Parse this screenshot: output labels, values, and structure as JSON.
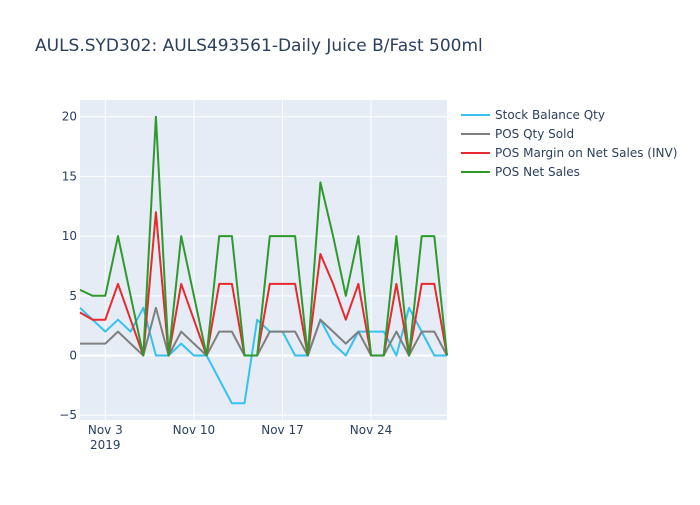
{
  "title": "AULS.SYD302:  AULS493561-Daily Juice B/Fast 500ml",
  "colors": {
    "plot_bg": "#e5ecf6",
    "grid": "#ffffff",
    "text": "#2a3f5f"
  },
  "chart_data": {
    "type": "line",
    "title": "AULS.SYD302:  AULS493561-Daily Juice B/Fast 500ml",
    "x": [
      "2019-11-01",
      "2019-11-02",
      "2019-11-03",
      "2019-11-04",
      "2019-11-05",
      "2019-11-06",
      "2019-11-07",
      "2019-11-08",
      "2019-11-09",
      "2019-11-10",
      "2019-11-11",
      "2019-11-12",
      "2019-11-13",
      "2019-11-14",
      "2019-11-15",
      "2019-11-16",
      "2019-11-17",
      "2019-11-18",
      "2019-11-19",
      "2019-11-20",
      "2019-11-21",
      "2019-11-22",
      "2019-11-23",
      "2019-11-24",
      "2019-11-25",
      "2019-11-26",
      "2019-11-27",
      "2019-11-28",
      "2019-11-29",
      "2019-11-30"
    ],
    "xlim": [
      "2019-11-01",
      "2019-11-30"
    ],
    "ylim": [
      -5.4,
      21.4
    ],
    "x_ticks": [
      {
        "date": "2019-11-03",
        "label": "Nov 3",
        "sublabel": "2019"
      },
      {
        "date": "2019-11-10",
        "label": "Nov 10",
        "sublabel": ""
      },
      {
        "date": "2019-11-17",
        "label": "Nov 17",
        "sublabel": ""
      },
      {
        "date": "2019-11-24",
        "label": "Nov 24",
        "sublabel": ""
      }
    ],
    "y_ticks": [
      -5,
      0,
      5,
      10,
      15,
      20
    ],
    "y_tick_labels": [
      "−5",
      "0",
      "5",
      "10",
      "15",
      "20"
    ],
    "grid": true,
    "legend_position": "right",
    "series": [
      {
        "name": "Stock Balance Qty",
        "color": "#36c1f0",
        "values": [
          4,
          3,
          2,
          3,
          2,
          4,
          0,
          0,
          1,
          0,
          0,
          -2,
          -4,
          -4,
          3,
          2,
          2,
          0,
          0,
          3,
          1,
          0,
          2,
          2,
          2,
          0,
          4,
          2,
          0,
          0
        ]
      },
      {
        "name": "POS Qty Sold",
        "color": "#7f7f7f",
        "values": [
          1,
          1,
          1,
          2,
          1,
          0,
          4,
          0,
          2,
          1,
          0,
          2,
          2,
          0,
          0,
          2,
          2,
          2,
          0,
          3,
          2,
          1,
          2,
          0,
          0,
          2,
          0,
          2,
          2,
          0
        ]
      },
      {
        "name": "POS Margin on Net Sales (INV)",
        "color": "#e8292e",
        "values": [
          3.6,
          3,
          3,
          6,
          3,
          0,
          12,
          0,
          6,
          3,
          0,
          6,
          6,
          0,
          0,
          6,
          6,
          6,
          0,
          8.5,
          6,
          3,
          6,
          0,
          0,
          6,
          0,
          6,
          6,
          0
        ]
      },
      {
        "name": "POS Net Sales",
        "color": "#2e9a2e",
        "values": [
          5.5,
          5,
          5,
          10,
          5,
          0,
          20,
          0,
          10,
          5,
          0,
          10,
          10,
          0,
          0,
          10,
          10,
          10,
          0,
          14.5,
          10,
          5,
          10,
          0,
          0,
          10,
          0,
          10,
          10,
          0
        ]
      }
    ]
  }
}
